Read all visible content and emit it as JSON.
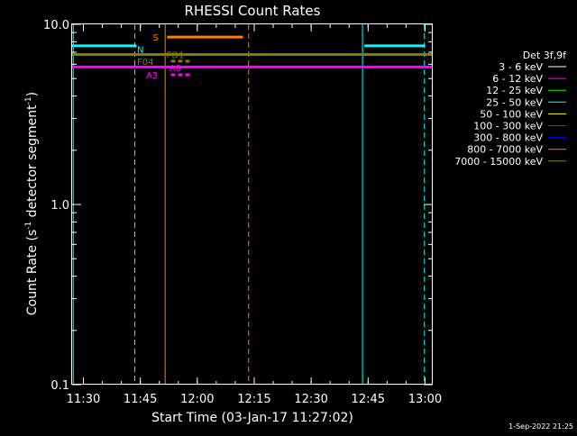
{
  "chart_data": {
    "type": "line",
    "title": "RHESSI Count Rates",
    "xlabel": "Start Time (03-Jan-17 11:27:02)",
    "ylabel_main": "Count Rate (s",
    "ylabel_sup1": "-1",
    "ylabel_mid": " detector segment",
    "ylabel_sup2": "-1",
    "ylabel_end": ")",
    "x_axis": {
      "start_minutes": 0,
      "end_minutes": 95,
      "ticks": [
        {
          "label": "11:30",
          "minute": 2.97
        },
        {
          "label": "11:45",
          "minute": 17.97
        },
        {
          "label": "12:00",
          "minute": 32.97
        },
        {
          "label": "12:15",
          "minute": 47.97
        },
        {
          "label": "12:30",
          "minute": 62.97
        },
        {
          "label": "12:45",
          "minute": 77.97
        },
        {
          "label": "13:00",
          "minute": 92.97
        }
      ]
    },
    "y_axis": {
      "scale": "log",
      "range": [
        0.1,
        10.0
      ],
      "ticks": [
        {
          "label": "10.0",
          "value": 10.0
        },
        {
          "label": "1.0",
          "value": 1.0
        },
        {
          "label": "0.1",
          "value": 0.1
        }
      ]
    },
    "legend": {
      "title": "Det 3f,9f",
      "placement": "right",
      "entries": [
        {
          "label": "3 - 6 keV",
          "color": "#ffffff"
        },
        {
          "label": "6 - 12 keV",
          "color": "#ff00ff"
        },
        {
          "label": "12 - 25 keV",
          "color": "#00ff00"
        },
        {
          "label": "25 - 50 keV",
          "color": "#00ffff"
        },
        {
          "label": "50 - 100 keV",
          "color": "#ffff00"
        },
        {
          "label": "100 - 300 keV",
          "color": "#ff0000"
        },
        {
          "label": "300 - 800 keV",
          "color": "#0000ff"
        },
        {
          "label": "800 - 7000 keV",
          "color": "#ff8000"
        },
        {
          "label": "7000 - 15000 keV",
          "color": "#808000"
        }
      ]
    },
    "series": [
      {
        "color": "#00ffff",
        "segments": [
          {
            "x": [
              0,
              17
            ],
            "y": 7.6
          },
          {
            "x": [
              77,
              93
            ],
            "y": 7.6
          }
        ]
      },
      {
        "color": "#808000",
        "segments": [
          {
            "x": [
              0,
              95
            ],
            "y": 6.8
          }
        ]
      },
      {
        "color": "#ff00ff",
        "segments": [
          {
            "x": [
              0,
              95
            ],
            "y": 5.8
          }
        ]
      },
      {
        "color": "#ff8000",
        "segments": [
          {
            "x": [
              25,
              45
            ],
            "y": 8.5
          }
        ]
      }
    ],
    "vertical_markers": [
      {
        "minute": 0.3,
        "color": "#00ffff",
        "style": "solid"
      },
      {
        "minute": 16.5,
        "color": "#00ffff",
        "style": "dashed"
      },
      {
        "minute": 24.5,
        "color": "#ff8000",
        "style": "solid"
      },
      {
        "minute": 46.5,
        "color": "#ff8000",
        "style": "dashed"
      },
      {
        "minute": 76.5,
        "color": "#00ffff",
        "style": "solid"
      },
      {
        "minute": 92.8,
        "color": "#00ffff",
        "style": "dashed"
      }
    ],
    "annotations": [
      {
        "text": "S",
        "color": "#ff8000",
        "minute": 22.0,
        "value": 8.5
      },
      {
        "text": "N",
        "color": "#00ffff",
        "minute": 18.0,
        "value": 7.3
      },
      {
        "text": "FD1",
        "color": "#808000",
        "minute": 27.2,
        "value": 6.8
      },
      {
        "text": "F04",
        "color": "#808000",
        "minute": 19.3,
        "value": 6.25
      },
      {
        "text": "A0",
        "color": "#ff00ff",
        "minute": 27.2,
        "value": 5.75
      },
      {
        "text": "A3",
        "color": "#ff00ff",
        "minute": 21.0,
        "value": 5.25
      }
    ],
    "annotation_bars": [
      {
        "color": "#808000",
        "x": [
          26,
          31
        ],
        "value": 6.25
      },
      {
        "color": "#ff00ff",
        "x": [
          26,
          31
        ],
        "value": 5.25
      }
    ],
    "timestamp": "1-Sep-2022 21:25"
  }
}
